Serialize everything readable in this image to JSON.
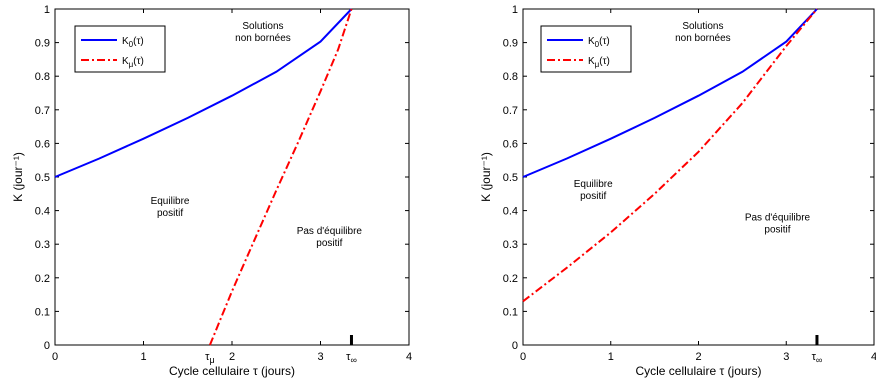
{
  "chart_data": [
    {
      "type": "line",
      "xlim": [
        0,
        4
      ],
      "ylim": [
        0,
        1
      ],
      "x_ticks": [
        "0",
        "1",
        "2",
        "3",
        "4"
      ],
      "y_ticks": [
        "0",
        "0.1",
        "0.2",
        "0.3",
        "0.4",
        "0.5",
        "0.6",
        "0.7",
        "0.8",
        "0.9",
        "1"
      ],
      "xlabel": "Cycle cellulaire τ  (jours)",
      "ylabel": "K (jour⁻¹)",
      "special_ticks": [
        {
          "label": "τμ",
          "x": 1.75,
          "marker": false
        },
        {
          "label": "τ∞",
          "x": 3.35,
          "marker": true
        }
      ],
      "legend": [
        "K0(τ)",
        "Kμ(τ)"
      ],
      "legend_position": "top-left",
      "annotations": [
        {
          "lines": [
            "Solutions",
            "non bornées"
          ],
          "x": 2.35,
          "y": 0.94
        },
        {
          "lines": [
            "Equilibre",
            "positif"
          ],
          "x": 1.3,
          "y": 0.42
        },
        {
          "lines": [
            "Pas d'équilibre",
            "positif"
          ],
          "x": 3.1,
          "y": 0.33
        }
      ],
      "series": [
        {
          "name": "K0(τ)",
          "style": "solid",
          "color": "#0000ff",
          "x": [
            0,
            0.5,
            1,
            1.5,
            2,
            2.5,
            3,
            3.35
          ],
          "y": [
            0.5,
            0.555,
            0.614,
            0.676,
            0.742,
            0.813,
            0.903,
            1.0
          ]
        },
        {
          "name": "Kμ(τ)",
          "style": "dashdot",
          "color": "#ff0000",
          "x": [
            1.75,
            2.0,
            2.25,
            2.5,
            2.75,
            3.0,
            3.2,
            3.35
          ],
          "y": [
            0.0,
            0.16,
            0.31,
            0.46,
            0.605,
            0.755,
            0.88,
            1.0
          ]
        }
      ]
    },
    {
      "type": "line",
      "xlim": [
        0,
        4
      ],
      "ylim": [
        0,
        1
      ],
      "x_ticks": [
        "0",
        "1",
        "2",
        "3",
        "4"
      ],
      "y_ticks": [
        "0",
        "0.1",
        "0.2",
        "0.3",
        "0.4",
        "0.5",
        "0.6",
        "0.7",
        "0.8",
        "0.9",
        "1"
      ],
      "xlabel": "Cycle cellulaire τ  (jours)",
      "ylabel": "K (jour⁻¹)",
      "special_ticks": [
        {
          "label": "τ∞",
          "x": 3.35,
          "marker": true
        }
      ],
      "legend": [
        "K0(τ)",
        "Kμ(τ)"
      ],
      "legend_position": "top-left",
      "annotations": [
        {
          "lines": [
            "Solutions",
            "non bornées"
          ],
          "x": 2.05,
          "y": 0.94
        },
        {
          "lines": [
            "Equilibre",
            "positif"
          ],
          "x": 0.8,
          "y": 0.47
        },
        {
          "lines": [
            "Pas d'équilibre",
            "positif"
          ],
          "x": 2.9,
          "y": 0.37
        }
      ],
      "series": [
        {
          "name": "K0(τ)",
          "style": "solid",
          "color": "#0000ff",
          "x": [
            0,
            0.5,
            1,
            1.5,
            2,
            2.5,
            3,
            3.35
          ],
          "y": [
            0.5,
            0.555,
            0.614,
            0.676,
            0.742,
            0.813,
            0.903,
            1.0
          ]
        },
        {
          "name": "Kμ(τ)",
          "style": "dashdot",
          "color": "#ff0000",
          "x": [
            0,
            0.5,
            1,
            1.5,
            2,
            2.5,
            3,
            3.35
          ],
          "y": [
            0.13,
            0.23,
            0.335,
            0.45,
            0.575,
            0.72,
            0.89,
            1.0
          ]
        }
      ]
    }
  ]
}
